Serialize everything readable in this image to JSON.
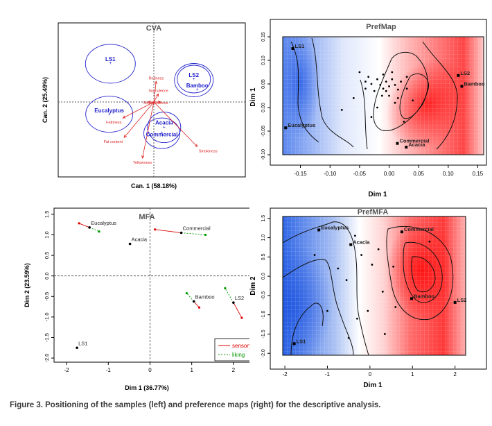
{
  "caption": "Figure 3. Positioning of the samples (left) and preference maps (right) for the descriptive analysis.",
  "colors": {
    "ellipse": "#2222cc",
    "vector": "#dd2222",
    "sensory": "#dd0000",
    "liking": "#009900",
    "map_red": "#ff2020",
    "map_blue": "#3366ee"
  },
  "chart_data": [
    {
      "type": "scatter",
      "title": "CVA",
      "xlabel": "Can. 1 (58.18%)",
      "ylabel": "Can. 2 (25.49%)",
      "points": [
        {
          "name": "LS1",
          "x": -1.9,
          "y": 1.7
        },
        {
          "name": "LS2",
          "x": 1.75,
          "y": 1.0
        },
        {
          "name": "Bamboo",
          "x": 1.9,
          "y": 0.55
        },
        {
          "name": "Eucalyptus",
          "x": -1.95,
          "y": -0.55
        },
        {
          "name": "Acacia",
          "x": 0.45,
          "y": -1.1
        },
        {
          "name": "Commercial",
          "x": 0.35,
          "y": -1.35
        }
      ],
      "vectors": [
        {
          "name": "Redness",
          "x": 0.1,
          "y": 0.9
        },
        {
          "name": "Succulence",
          "x": 0.2,
          "y": 0.35
        },
        {
          "name": "Shine",
          "x": -0.25,
          "y": 0.0
        },
        {
          "name": "Softness",
          "x": 0.3,
          "y": 0.0
        },
        {
          "name": "Fattiness",
          "x": -1.35,
          "y": -0.7
        },
        {
          "name": "Fat content",
          "x": -1.3,
          "y": -1.55
        },
        {
          "name": "Yellowness",
          "x": -0.5,
          "y": -2.45
        },
        {
          "name": "Smokiness",
          "x": 1.9,
          "y": -1.95
        }
      ]
    },
    {
      "type": "heatmap",
      "title": "PrefMap",
      "xlabel": "Dim 1",
      "ylabel": "Dim 1",
      "xlim": [
        -0.18,
        0.16
      ],
      "ylim": [
        -0.1,
        0.15
      ],
      "xticks": [
        "-0.15",
        "-0.10",
        "-0.05",
        "0.00",
        "0.05",
        "0.10",
        "0.15"
      ],
      "yticks": [
        "-0.10",
        "-0.05",
        "0.00",
        "0.05",
        "0.10",
        "0.15"
      ],
      "samples": [
        {
          "name": "LS1",
          "x": -0.163,
          "y": 0.125
        },
        {
          "name": "LS2",
          "x": 0.117,
          "y": 0.068
        },
        {
          "name": "Bamboo",
          "x": 0.123,
          "y": 0.045
        },
        {
          "name": "Eucalyptus",
          "x": -0.175,
          "y": -0.043
        },
        {
          "name": "Commercial",
          "x": 0.014,
          "y": -0.076
        },
        {
          "name": "Acacia",
          "x": 0.029,
          "y": -0.084
        }
      ],
      "consumers": [
        [
          -0.035,
          0.065
        ],
        [
          -0.02,
          0.06
        ],
        [
          -0.01,
          0.07
        ],
        [
          -0.005,
          0.055
        ],
        [
          0.005,
          0.06
        ],
        [
          0.0,
          0.045
        ],
        [
          -0.015,
          0.048
        ],
        [
          -0.03,
          0.05
        ],
        [
          0.01,
          0.048
        ],
        [
          -0.005,
          0.035
        ],
        [
          0.015,
          0.038
        ],
        [
          -0.025,
          0.035
        ],
        [
          0.02,
          0.055
        ],
        [
          -0.04,
          0.04
        ],
        [
          0.005,
          0.075
        ],
        [
          -0.012,
          0.025
        ],
        [
          0.03,
          0.04
        ],
        [
          -0.05,
          0.075
        ],
        [
          -0.06,
          0.02
        ],
        [
          0.01,
          0.01
        ],
        [
          -0.02,
          0.0
        ],
        [
          0.04,
          0.015
        ],
        [
          -0.08,
          -0.005
        ],
        [
          0.025,
          -0.03
        ],
        [
          -0.03,
          -0.02
        ],
        [
          0.015,
          0.02
        ],
        [
          -0.01,
          0.04
        ],
        [
          0.03,
          0.065
        ],
        [
          -0.04,
          0.055
        ],
        [
          0.0,
          0.025
        ]
      ]
    },
    {
      "type": "scatter",
      "title": "MFA",
      "xlabel": "Dim 1 (36.77%)",
      "ylabel": "Dim 2 (23.59%)",
      "xlim": [
        -2.3,
        2.6
      ],
      "ylim": [
        -2.1,
        1.65
      ],
      "xticks": [
        "-2",
        "-1",
        "0",
        "1",
        "2"
      ],
      "yticks": [
        "-2.0",
        "-1.5",
        "-1.0",
        "-0.5",
        "0.0",
        "0.5",
        "1.0",
        "1.5"
      ],
      "legend": [
        {
          "name": "sensory"
        },
        {
          "name": "liking"
        }
      ],
      "points": [
        {
          "name": "Eucalyptus",
          "x": -1.45,
          "y": 1.18,
          "sensory": [
            -1.7,
            1.28
          ],
          "liking": [
            -1.22,
            1.08
          ]
        },
        {
          "name": "Commercial",
          "x": 0.75,
          "y": 1.05,
          "sensory": [
            0.12,
            1.13
          ],
          "liking": [
            1.33,
            1.0
          ]
        },
        {
          "name": "Acacia",
          "x": -0.48,
          "y": 0.78,
          "sensory": null,
          "liking": null
        },
        {
          "name": "Bamboo",
          "x": 1.05,
          "y": -0.62,
          "sensory": [
            1.18,
            -0.77
          ],
          "liking": [
            0.88,
            -0.42
          ]
        },
        {
          "name": "LS2",
          "x": 2.0,
          "y": -0.65,
          "sensory": [
            2.2,
            -1.02
          ],
          "liking": [
            1.8,
            -0.3
          ]
        },
        {
          "name": "LS1",
          "x": -1.75,
          "y": -1.75,
          "sensory": null,
          "liking": null
        }
      ]
    },
    {
      "type": "heatmap",
      "title": "PrefMFA",
      "xlabel": "Dim 1",
      "ylabel": "Dim 2",
      "xlim": [
        -2.05,
        2.25
      ],
      "ylim": [
        -2.05,
        1.55
      ],
      "xticks": [
        "-2",
        "-1",
        "0",
        "1",
        "2"
      ],
      "yticks": [
        "-2.0",
        "-1.5",
        "-1.0",
        "-0.5",
        "0.0",
        "0.5",
        "1.0",
        "1.5"
      ],
      "samples": [
        {
          "name": "Eucalyptus",
          "x": -1.2,
          "y": 1.2
        },
        {
          "name": "Commercial",
          "x": 0.75,
          "y": 1.15
        },
        {
          "name": "Acacia",
          "x": -0.45,
          "y": 0.82
        },
        {
          "name": "Bamboo",
          "x": 0.98,
          "y": -0.58
        },
        {
          "name": "LS2",
          "x": 2.0,
          "y": -0.68
        },
        {
          "name": "LS1",
          "x": -1.78,
          "y": -1.75
        }
      ],
      "consumers": [
        [
          -0.35,
          1.05
        ],
        [
          -0.2,
          0.55
        ],
        [
          0.05,
          0.3
        ],
        [
          -0.55,
          -0.1
        ],
        [
          0.3,
          -0.4
        ],
        [
          -0.75,
          0.2
        ],
        [
          -0.3,
          -1.1
        ],
        [
          0.35,
          -1.5
        ],
        [
          -0.05,
          -0.9
        ],
        [
          0.6,
          -0.8
        ],
        [
          -1.0,
          -0.9
        ],
        [
          0.2,
          0.7
        ],
        [
          0.55,
          0.25
        ],
        [
          -1.3,
          0.55
        ],
        [
          1.4,
          0.9
        ],
        [
          -0.5,
          -1.6
        ]
      ]
    }
  ]
}
